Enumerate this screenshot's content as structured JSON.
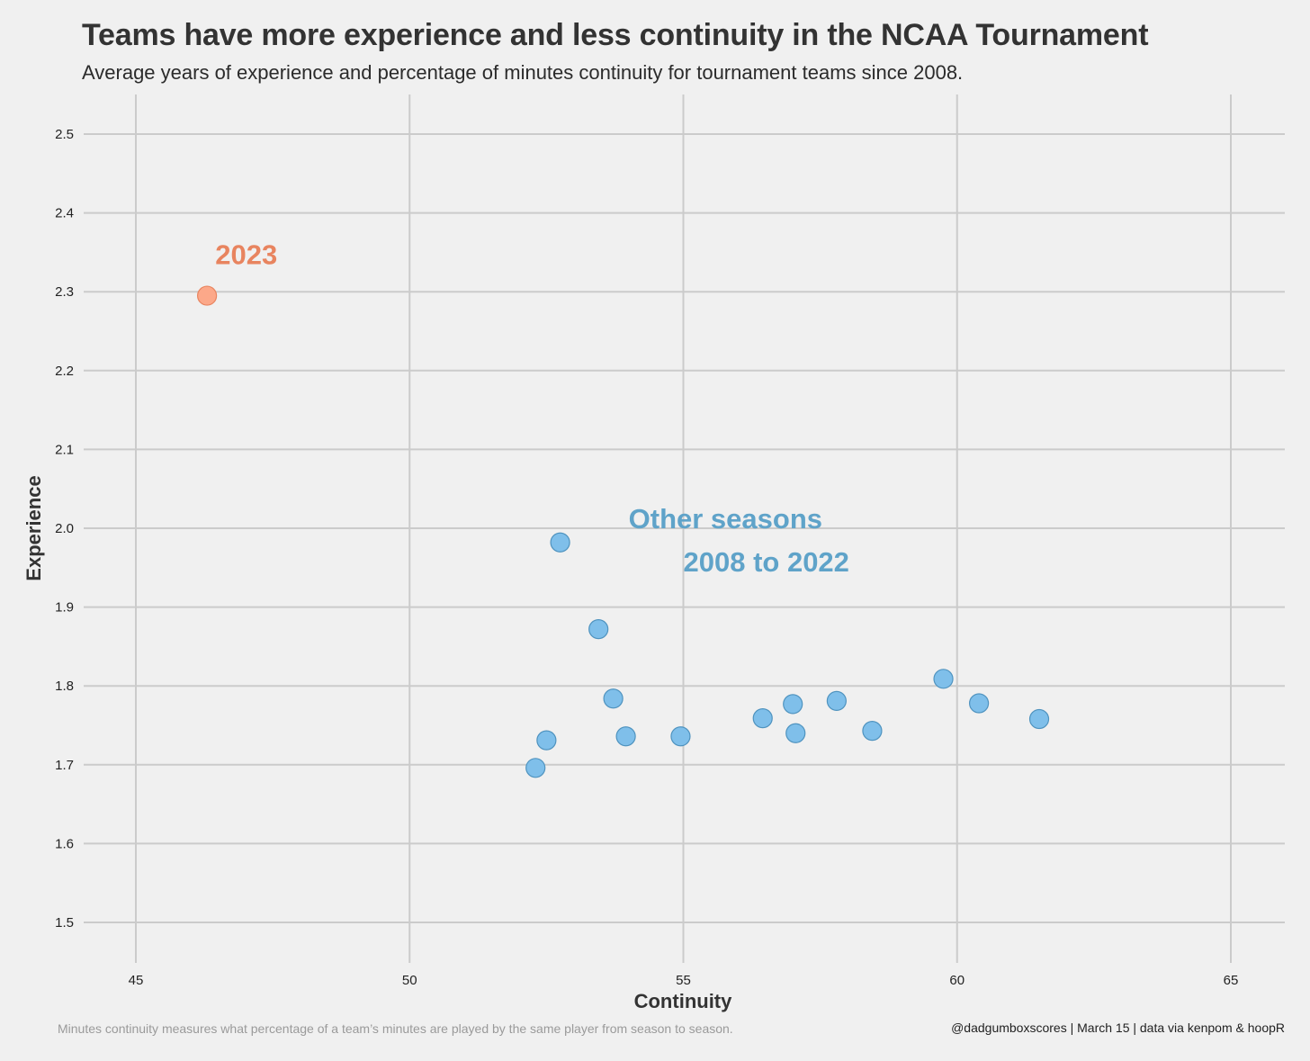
{
  "header": {
    "title": "Teams have more experience and less continuity in the NCAA Tournament",
    "subtitle": "Average years of experience and percentage of minutes continuity for tournament teams since 2008."
  },
  "footer": {
    "caption": "Minutes continuity measures what percentage of a team’s minutes are played by the same player from season to season.",
    "credit": "@dadgumboxscores | March 15 | data via kenpom & hoopR"
  },
  "chart_data": {
    "type": "scatter",
    "title": "Teams have more experience and less continuity in the NCAA Tournament",
    "subtitle": "Average years of experience and percentage of minutes continuity for tournament teams since 2008.",
    "xlabel": "Continuity",
    "ylabel": "Experience",
    "xlim": [
      44,
      66
    ],
    "ylim": [
      1.45,
      2.55
    ],
    "x_ticks": [
      45,
      50,
      55,
      60,
      65
    ],
    "y_ticks": [
      1.5,
      1.6,
      1.7,
      1.8,
      1.9,
      2.0,
      2.1,
      2.2,
      2.3,
      2.4,
      2.5
    ],
    "x_tick_labels": [
      "45",
      "50",
      "55",
      "60",
      "65"
    ],
    "y_tick_labels": [
      "1.5",
      "1.6",
      "1.7",
      "1.8",
      "1.9",
      "2.0",
      "2.1",
      "2.2",
      "2.3",
      "2.4",
      "2.5"
    ],
    "grid": true,
    "legend": "none",
    "series": [
      {
        "color": "#fca889",
        "stroke": "#e8845f",
        "points": [
          {
            "x": 46.3,
            "y": 2.295
          }
        ]
      },
      {
        "color": "#7fbfea",
        "stroke": "#4f93bf",
        "points": [
          {
            "x": 52.75,
            "y": 1.982
          },
          {
            "x": 53.45,
            "y": 1.872
          },
          {
            "x": 53.72,
            "y": 1.784
          },
          {
            "x": 52.5,
            "y": 1.731
          },
          {
            "x": 52.3,
            "y": 1.696
          },
          {
            "x": 53.95,
            "y": 1.736
          },
          {
            "x": 54.95,
            "y": 1.736
          },
          {
            "x": 56.45,
            "y": 1.759
          },
          {
            "x": 57.0,
            "y": 1.777
          },
          {
            "x": 57.05,
            "y": 1.74
          },
          {
            "x": 57.8,
            "y": 1.781
          },
          {
            "x": 58.45,
            "y": 1.743
          },
          {
            "x": 59.75,
            "y": 1.809
          },
          {
            "x": 60.4,
            "y": 1.778
          },
          {
            "x": 61.5,
            "y": 1.758
          }
        ]
      }
    ],
    "annotations": [
      {
        "text": "2023",
        "color": "#e8845f",
        "x": 46.45,
        "y": 2.335
      },
      {
        "text": "Other seasons",
        "color": "#5fa3c9",
        "x": 54.0,
        "y": 2.0
      },
      {
        "text": "2008 to 2022",
        "color": "#5fa3c9",
        "x": 55.0,
        "y": 1.945
      }
    ]
  }
}
